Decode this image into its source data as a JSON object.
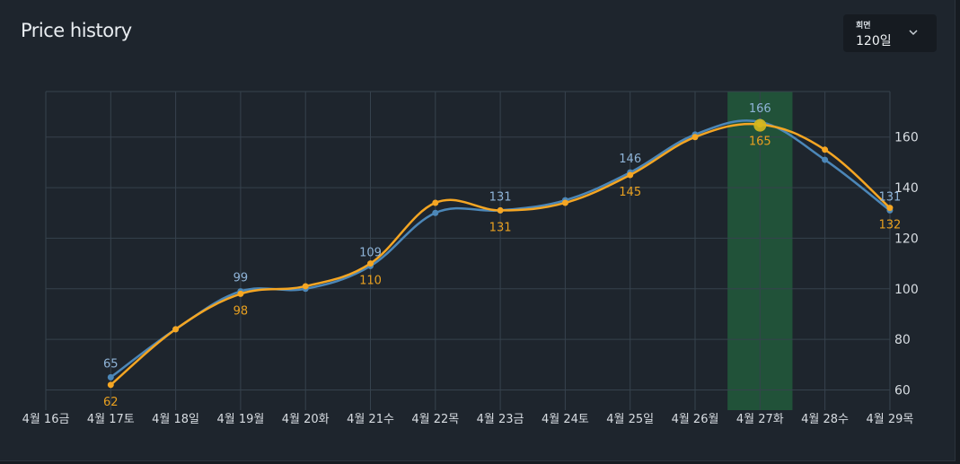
{
  "header": {
    "title": "Price history"
  },
  "range_selector": {
    "caption": "회면",
    "value": "120일"
  },
  "colors": {
    "background": "#1e252d",
    "grid": "#36424d",
    "series_a": "#4c87b8",
    "series_b": "#f5a623",
    "highlight": "#22543a",
    "label_a": "#8fb4d8",
    "label_b": "#e8a020",
    "selected_marker": "#d4b81e"
  },
  "chart_data": {
    "type": "line",
    "title": "Price history",
    "xlabel": "",
    "ylabel": "",
    "ylim": [
      52,
      178
    ],
    "y_ticks": [
      60,
      80,
      100,
      120,
      140,
      160
    ],
    "grid": true,
    "legend": "none",
    "categories": [
      "4월 16금",
      "4월 17토",
      "4월 18일",
      "4월 19월",
      "4월 20화",
      "4월 21수",
      "4월 22목",
      "4월 23금",
      "4월 24토",
      "4월 25일",
      "4월 26월",
      "4월 27화",
      "4월 28수",
      "4월 29목"
    ],
    "highlight_category": "4월 27화",
    "series": [
      {
        "values": [
          null,
          65,
          84,
          99,
          100,
          109,
          130,
          131,
          135,
          146,
          161,
          166,
          151,
          131
        ],
        "labels": [
          "",
          "65",
          "",
          "99",
          "",
          "109",
          "",
          "131",
          "",
          "146",
          "",
          "166",
          "",
          "131"
        ]
      },
      {
        "values": [
          null,
          62,
          84,
          98,
          101,
          110,
          134,
          131,
          134,
          145,
          160,
          165,
          155,
          132
        ],
        "labels": [
          "",
          "62",
          "",
          "98",
          "",
          "110",
          "",
          "131",
          "",
          "145",
          "",
          "165",
          "",
          "132"
        ]
      }
    ]
  }
}
